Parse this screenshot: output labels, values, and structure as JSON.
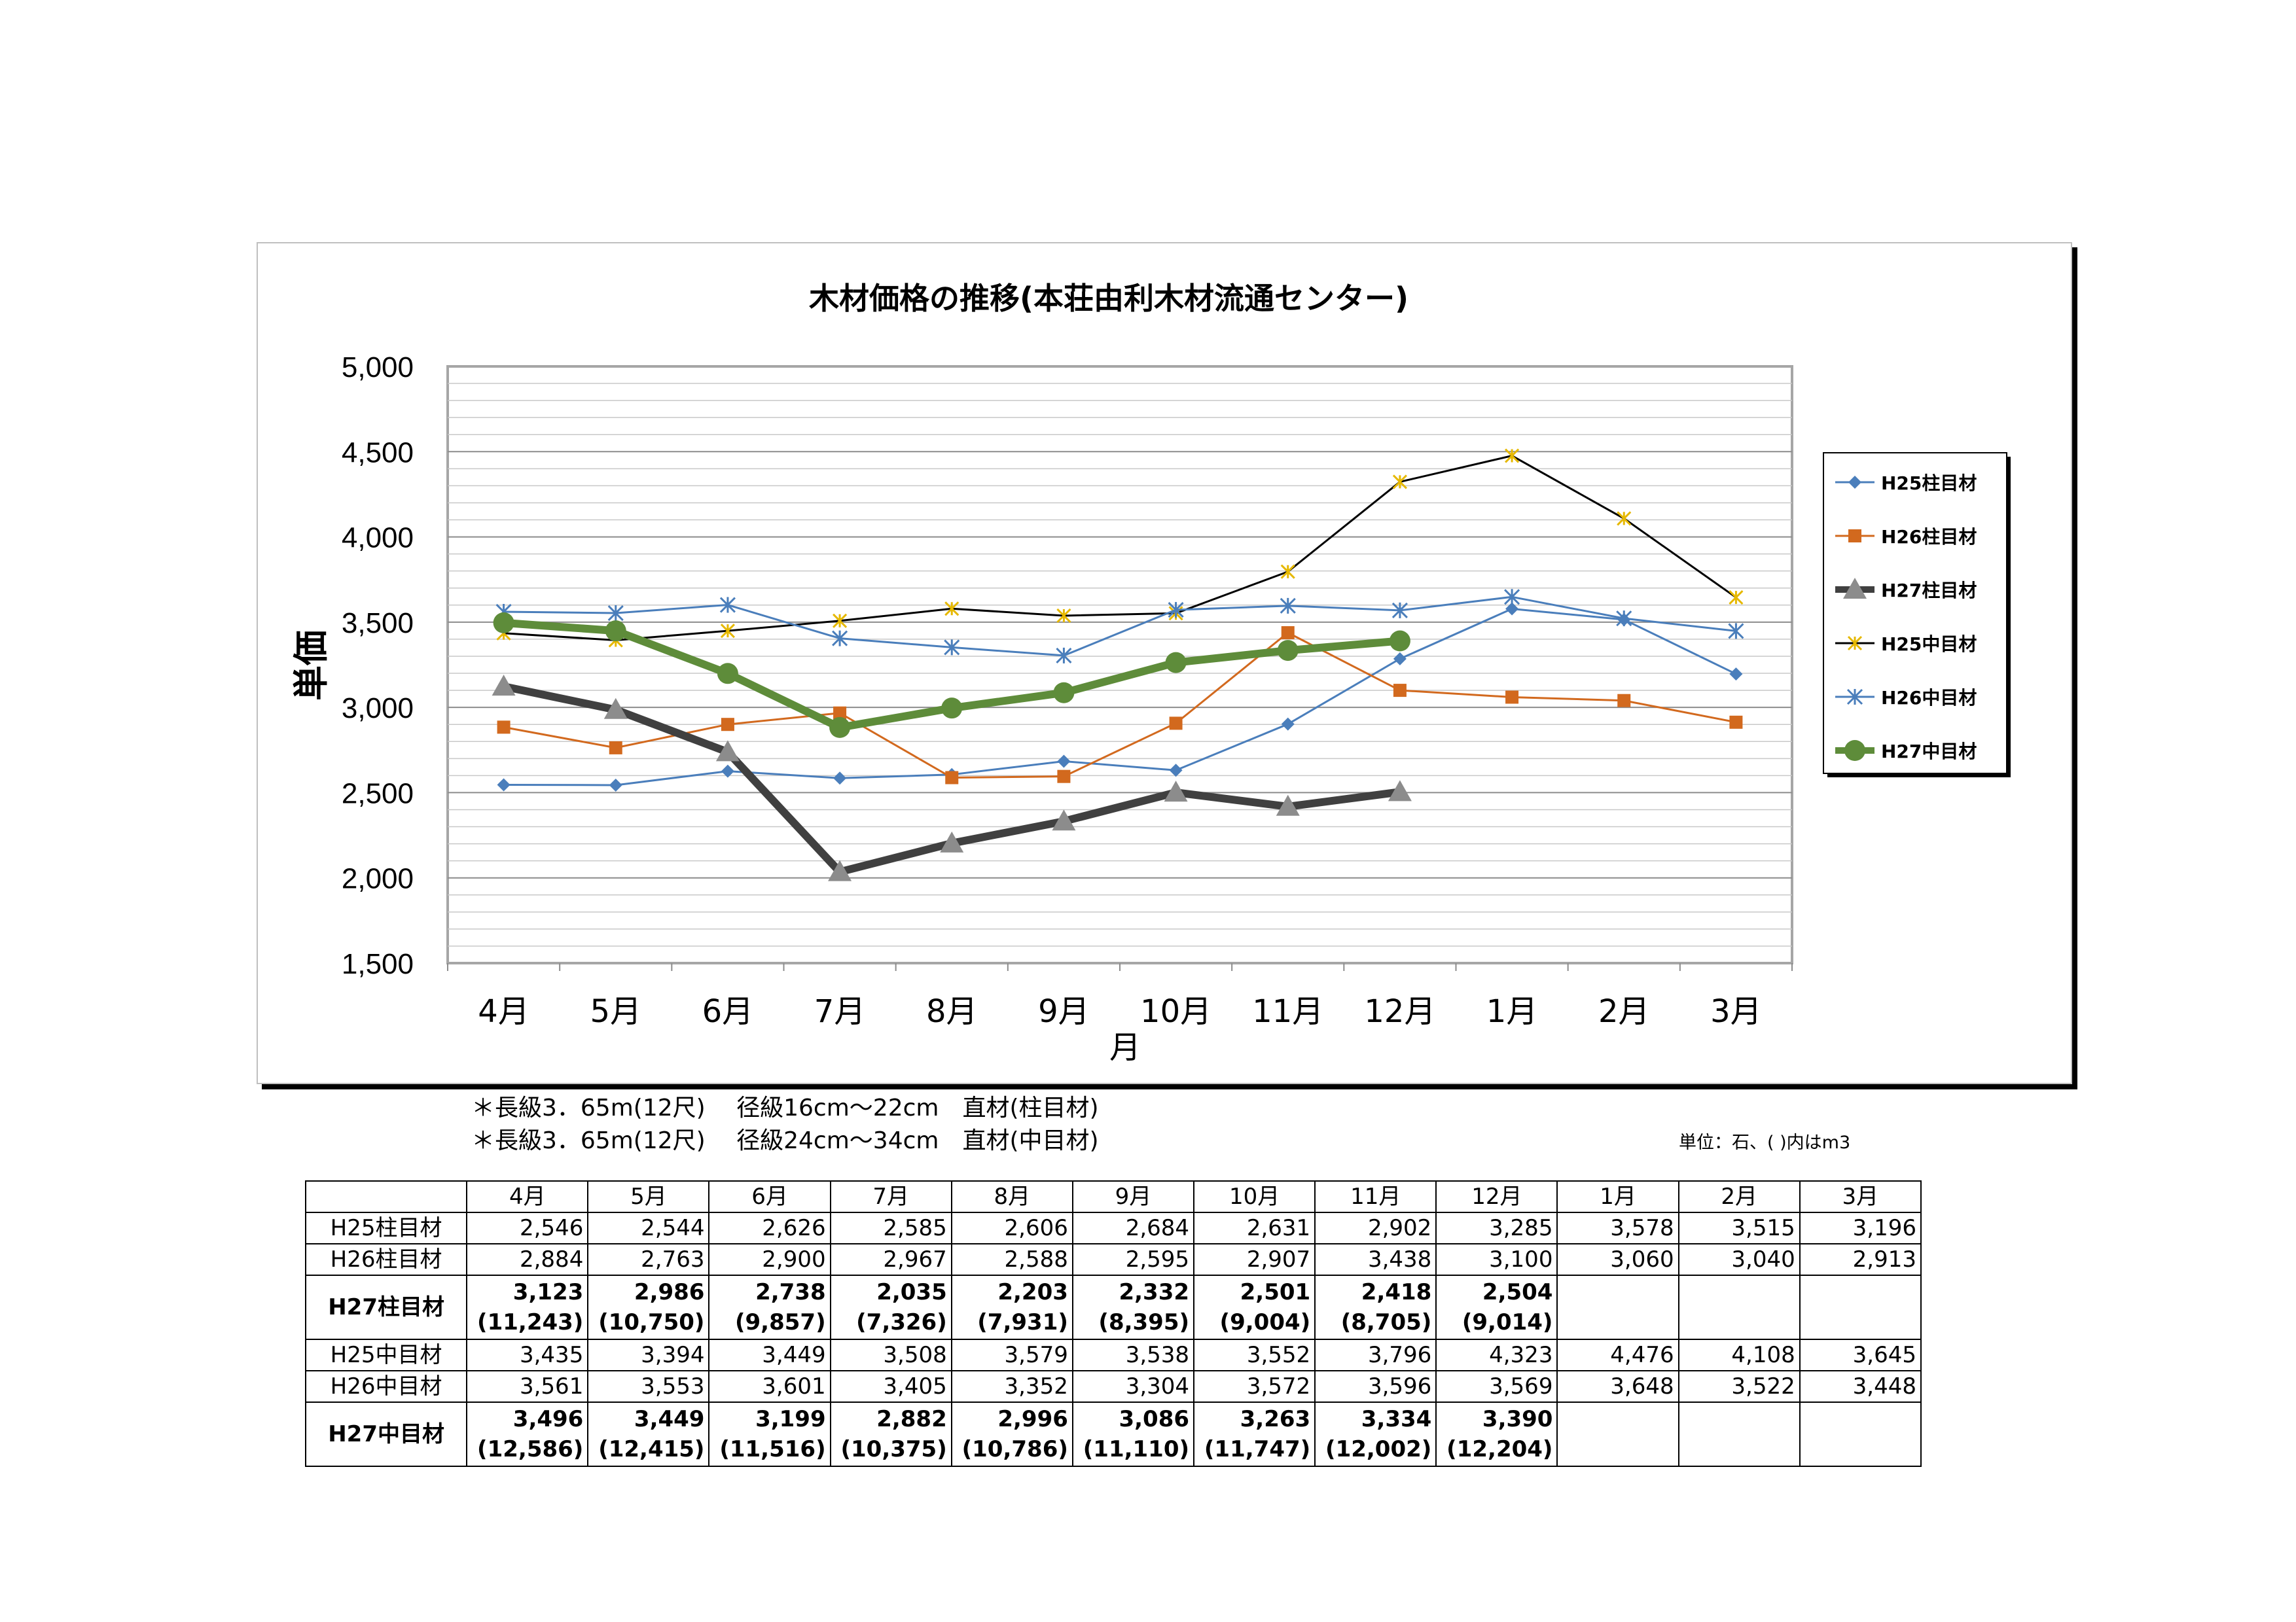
{
  "chart_data": {
    "type": "line",
    "title": "木材価格の推移(本荘由利木材流通センター)",
    "xlabel": "月",
    "ylabel": "単価",
    "categories": [
      "4月",
      "5月",
      "6月",
      "7月",
      "8月",
      "9月",
      "10月",
      "11月",
      "12月",
      "1月",
      "2月",
      "3月"
    ],
    "ylim": [
      1500,
      5000
    ],
    "yticks": [
      "5,000",
      "4,500",
      "4,000",
      "3,500",
      "3,000",
      "2,500",
      "2,000",
      "1,500"
    ],
    "legend_position": "right",
    "grid": true,
    "series": [
      {
        "name": "H25柱目材",
        "color": "#4a7ebb",
        "marker": "diamond",
        "values": [
          2546,
          2544,
          2626,
          2585,
          2606,
          2684,
          2631,
          2902,
          3285,
          3578,
          3515,
          3196
        ]
      },
      {
        "name": "H26柱目材",
        "color": "#d2691e",
        "marker": "square",
        "values": [
          2884,
          2763,
          2900,
          2967,
          2588,
          2595,
          2907,
          3438,
          3100,
          3060,
          3040,
          2913
        ]
      },
      {
        "name": "H27柱目材",
        "color": "#404040",
        "marker": "triangle",
        "values": [
          3123,
          2986,
          2738,
          2035,
          2203,
          2332,
          2501,
          2418,
          2504,
          null,
          null,
          null
        ]
      },
      {
        "name": "H25中目材",
        "color": "#000000",
        "marker": "x-yellow",
        "values": [
          3435,
          3394,
          3449,
          3508,
          3579,
          3538,
          3552,
          3796,
          4323,
          4476,
          4108,
          3645
        ]
      },
      {
        "name": "H26中目材",
        "color": "#4a7ebb",
        "marker": "star",
        "values": [
          3561,
          3553,
          3601,
          3405,
          3352,
          3304,
          3572,
          3596,
          3569,
          3648,
          3522,
          3448
        ]
      },
      {
        "name": "H27中目材",
        "color": "#5e8c3a",
        "marker": "circle",
        "values": [
          3496,
          3449,
          3199,
          2882,
          2996,
          3086,
          3263,
          3334,
          3390,
          null,
          null,
          null
        ]
      }
    ]
  },
  "notes": {
    "line1": "＊長級3．65m(12尺)　 径級16cm～22cm　直材(柱目材)",
    "line2": "＊長級3．65m(12尺)　 径級24cm～34cm　直材(中目材)",
    "unit": "単位：石、( )内はm3"
  },
  "table": {
    "header": [
      "",
      "4月",
      "5月",
      "6月",
      "7月",
      "8月",
      "9月",
      "10月",
      "11月",
      "12月",
      "1月",
      "2月",
      "3月"
    ],
    "rows": [
      {
        "label": "H25柱目材",
        "bold": false,
        "cells": [
          "2,546",
          "2,544",
          "2,626",
          "2,585",
          "2,606",
          "2,684",
          "2,631",
          "2,902",
          "3,285",
          "3,578",
          "3,515",
          "3,196"
        ],
        "sub": null
      },
      {
        "label": "H26柱目材",
        "bold": false,
        "cells": [
          "2,884",
          "2,763",
          "2,900",
          "2,967",
          "2,588",
          "2,595",
          "2,907",
          "3,438",
          "3,100",
          "3,060",
          "3,040",
          "2,913"
        ],
        "sub": null
      },
      {
        "label": "H27柱目材",
        "bold": true,
        "cells": [
          "3,123",
          "2,986",
          "2,738",
          "2,035",
          "2,203",
          "2,332",
          "2,501",
          "2,418",
          "2,504",
          "",
          "",
          ""
        ],
        "sub": [
          "(11,243)",
          "(10,750)",
          "(9,857)",
          "(7,326)",
          "(7,931)",
          "(8,395)",
          "(9,004)",
          "(8,705)",
          "(9,014)",
          "",
          "",
          ""
        ]
      },
      {
        "label": "H25中目材",
        "bold": false,
        "cells": [
          "3,435",
          "3,394",
          "3,449",
          "3,508",
          "3,579",
          "3,538",
          "3,552",
          "3,796",
          "4,323",
          "4,476",
          "4,108",
          "3,645"
        ],
        "sub": null
      },
      {
        "label": "H26中目材",
        "bold": false,
        "cells": [
          "3,561",
          "3,553",
          "3,601",
          "3,405",
          "3,352",
          "3,304",
          "3,572",
          "3,596",
          "3,569",
          "3,648",
          "3,522",
          "3,448"
        ],
        "sub": null
      },
      {
        "label": "H27中目材",
        "bold": true,
        "cells": [
          "3,496",
          "3,449",
          "3,199",
          "2,882",
          "2,996",
          "3,086",
          "3,263",
          "3,334",
          "3,390",
          "",
          "",
          ""
        ],
        "sub": [
          "(12,586)",
          "(12,415)",
          "(11,516)",
          "(10,375)",
          "(10,786)",
          "(11,110)",
          "(11,747)",
          "(12,002)",
          "(12,204)",
          "",
          "",
          ""
        ]
      }
    ]
  }
}
